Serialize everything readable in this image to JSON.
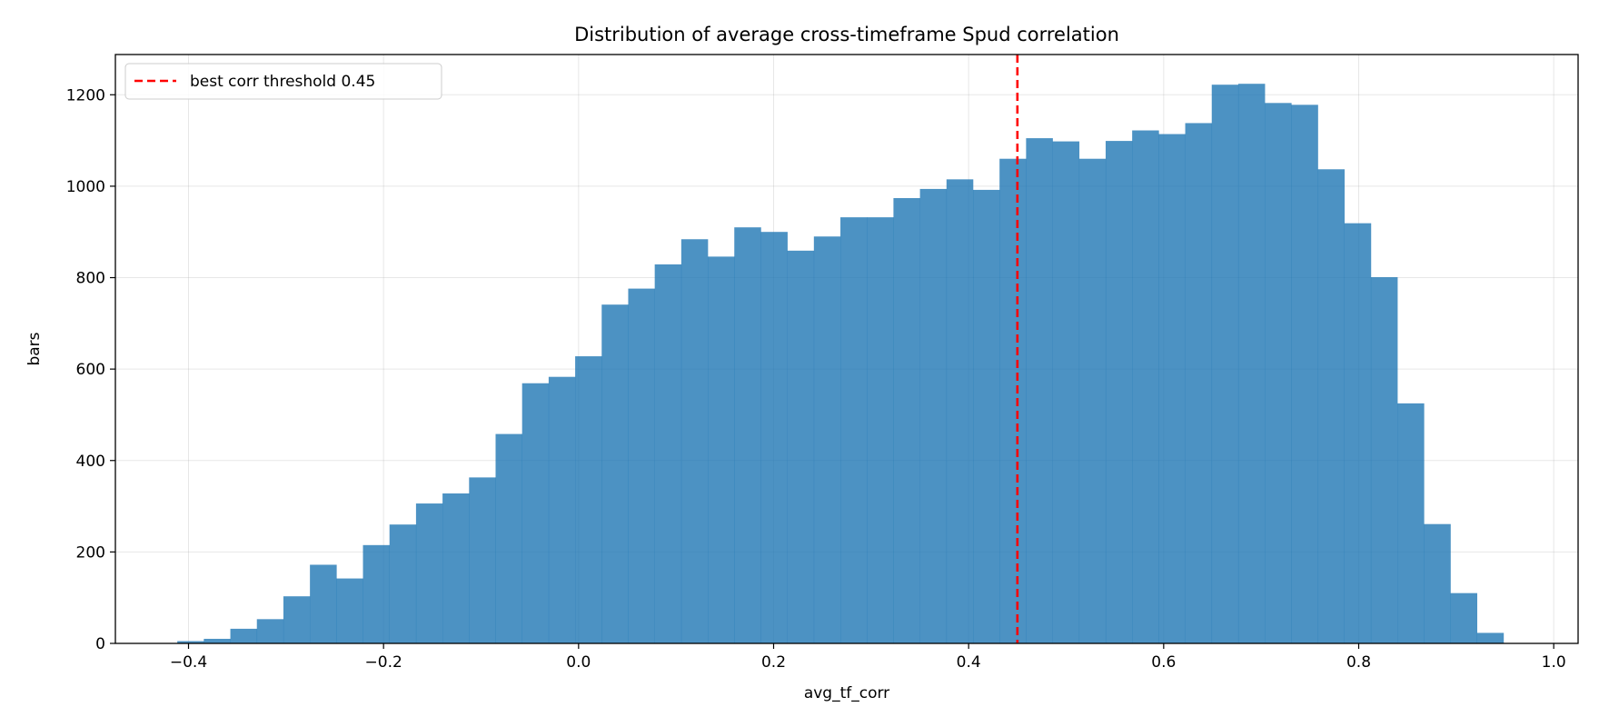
{
  "chart_data": {
    "type": "bar",
    "title": "Distribution of average cross-timeframe Spud correlation",
    "xlabel": "avg_tf_corr",
    "ylabel": "bars",
    "xlim": [
      -0.475,
      1.025
    ],
    "ylim": [
      0,
      1288
    ],
    "xticks": [
      -0.4,
      -0.2,
      0.0,
      0.2,
      0.4,
      0.6,
      0.8,
      1.0
    ],
    "xtick_labels": [
      "−0.4",
      "−0.2",
      "0.0",
      "0.2",
      "0.4",
      "0.6",
      "0.8",
      "1.0"
    ],
    "yticks": [
      0,
      200,
      400,
      600,
      800,
      1000,
      1200
    ],
    "ytick_labels": [
      "0",
      "200",
      "400",
      "600",
      "800",
      "1000",
      "1200"
    ],
    "grid": true,
    "bar_color": "#1f77b4",
    "bin_start": -0.4115,
    "bin_width": 0.0272,
    "values": [
      5,
      10,
      32,
      53,
      103,
      172,
      142,
      215,
      260,
      306,
      328,
      363,
      458,
      569,
      583,
      628,
      741,
      776,
      829,
      884,
      846,
      910,
      900,
      859,
      890,
      932,
      932,
      974,
      994,
      1015,
      992,
      1060,
      1105,
      1098,
      1060,
      1099,
      1122,
      1114,
      1138,
      1222,
      1224,
      1182,
      1178,
      1037,
      919,
      801,
      525,
      261,
      110,
      23
    ],
    "threshold": {
      "value": 0.45,
      "label": "best corr threshold 0.45",
      "color": "#ff0000"
    },
    "legend_position": "upper-left"
  }
}
